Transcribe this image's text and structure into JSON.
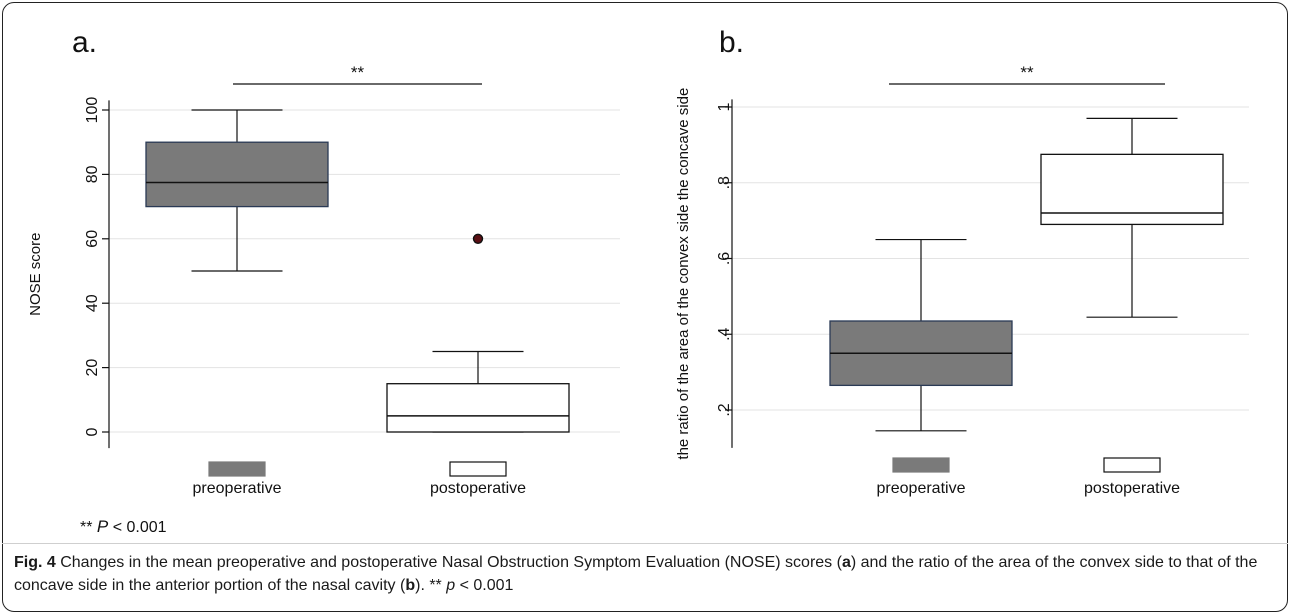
{
  "chart_data": [
    {
      "type": "box",
      "panel_label": "a.",
      "title": "",
      "xlabel": "",
      "ylabel": "NOSE score",
      "ylim": [
        -5,
        103
      ],
      "yticks": [
        "0",
        "20",
        "40",
        "60",
        "80",
        "100"
      ],
      "ytick_values": [
        0,
        20,
        40,
        60,
        80,
        100
      ],
      "grid": true,
      "significance": "**",
      "legend": [
        {
          "label": "preoperative",
          "color": "#7a7a7a"
        },
        {
          "label": "postoperative",
          "color": "#ffffff"
        }
      ],
      "boxes": [
        {
          "name": "preoperative",
          "whisker_low": 50,
          "q1": 70,
          "median": 77.5,
          "q3": 90,
          "whisker_high": 100,
          "outliers": [],
          "fill": "#7a7a7a"
        },
        {
          "name": "postoperative",
          "whisker_low": 0,
          "q1": 0,
          "median": 5,
          "q3": 15,
          "whisker_high": 25,
          "outliers": [
            60
          ],
          "fill": "#ffffff"
        }
      ]
    },
    {
      "type": "box",
      "panel_label": "b.",
      "title": "",
      "xlabel": "",
      "ylabel": "the ratio of the area of the convex side the concave side",
      "ylim": [
        0.1,
        1.02
      ],
      "yticks": [
        ".2",
        ".4",
        ".6",
        ".8",
        "1"
      ],
      "ytick_values": [
        0.2,
        0.4,
        0.6,
        0.8,
        1.0
      ],
      "grid": true,
      "significance": "**",
      "legend": [
        {
          "label": "preoperative",
          "color": "#7a7a7a"
        },
        {
          "label": "postoperative",
          "color": "#ffffff"
        }
      ],
      "boxes": [
        {
          "name": "preoperative",
          "whisker_low": 0.145,
          "q1": 0.265,
          "median": 0.35,
          "q3": 0.435,
          "whisker_high": 0.65,
          "outliers": [],
          "fill": "#7a7a7a"
        },
        {
          "name": "postoperative",
          "whisker_low": 0.445,
          "q1": 0.69,
          "median": 0.72,
          "q3": 0.875,
          "whisker_high": 0.97,
          "outliers": [],
          "fill": "#ffffff"
        }
      ]
    }
  ],
  "footnote": {
    "stars": "** ",
    "p": "P",
    "rest": " < 0.001"
  },
  "caption": {
    "fig": "Fig. 4",
    "t1": " Changes in the mean preoperative and postoperative Nasal Obstruction Symptom Evaluation (NOSE) scores (",
    "a": "a",
    "t2": ") and the ratio of the area of the convex side to that of the concave side in the anterior portion of the nasal cavity (",
    "b": "b",
    "t3": "). ** ",
    "p": "p",
    "t4": " < 0.001"
  }
}
